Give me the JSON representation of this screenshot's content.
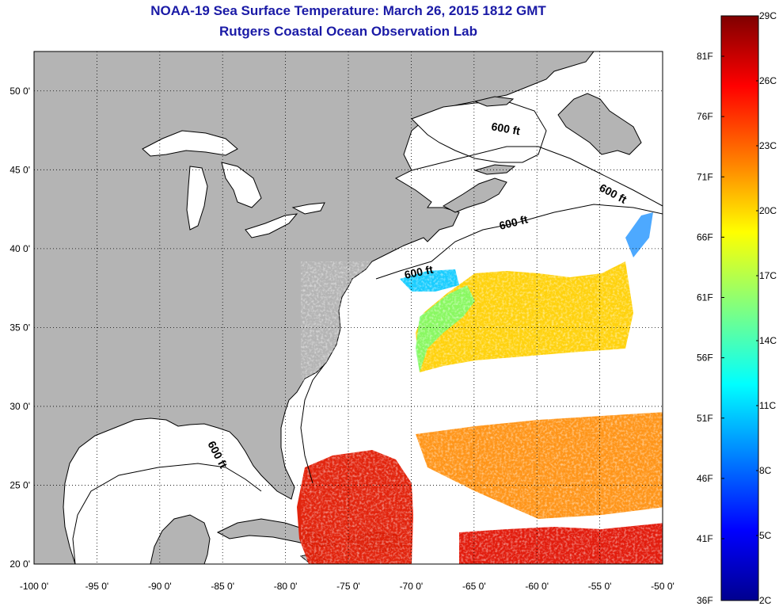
{
  "title": "NOAA-19 Sea Surface Temperature:  March 26, 2015 1812 GMT",
  "subtitle": "Rutgers Coastal Ocean Observation Lab",
  "map": {
    "lon_range": [
      -100,
      -50
    ],
    "lat_range": [
      20,
      52.5
    ],
    "lon_ticks": [
      "-100 0'",
      "-95 0'",
      "-90 0'",
      "-85 0'",
      "-80 0'",
      "-75 0'",
      "-70 0'",
      "-65 0'",
      "-60 0'",
      "-55 0'",
      "-50 0'"
    ],
    "lat_ticks": [
      "20 0'",
      "25 0'",
      "30 0'",
      "35 0'",
      "40 0'",
      "45 0'",
      "50 0'"
    ],
    "grid": "dotted",
    "land_color": "#b4b4b4",
    "no_data_color": "#ffffff",
    "depth_contour_label": "600 ft"
  },
  "colorbar": {
    "celsius": [
      "29C",
      "26C",
      "23C",
      "20C",
      "17C",
      "14C",
      "11C",
      "8C",
      "5C",
      "2C"
    ],
    "fahrenheit": [
      "81F",
      "76F",
      "71F",
      "66F",
      "61F",
      "56F",
      "51F",
      "46F",
      "41F",
      "36F"
    ],
    "colors": [
      "#7f0000",
      "#ff0000",
      "#ff8000",
      "#ffff00",
      "#80ff80",
      "#00ffff",
      "#0080ff",
      "#0000ff",
      "#00008f"
    ]
  }
}
